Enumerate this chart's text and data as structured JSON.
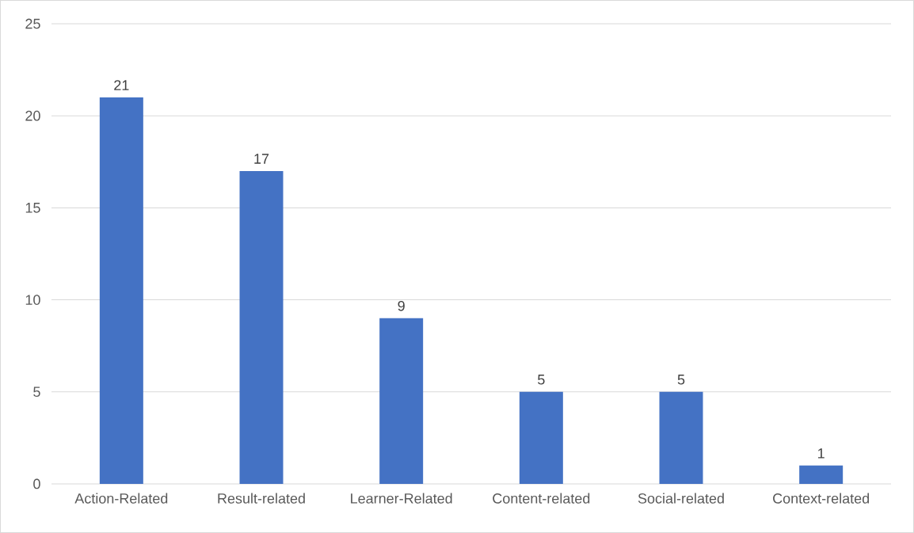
{
  "chart_data": {
    "type": "bar",
    "categories": [
      "Action-Related",
      "Result-related",
      "Learner-Related",
      "Content-related",
      "Social-related",
      "Context-related"
    ],
    "values": [
      21,
      17,
      9,
      5,
      5,
      1
    ],
    "color": "#4472c4",
    "ylim": [
      0,
      25
    ],
    "yticks": [
      0,
      5,
      10,
      15,
      20,
      25
    ],
    "grid": "y",
    "data_labels": true
  }
}
